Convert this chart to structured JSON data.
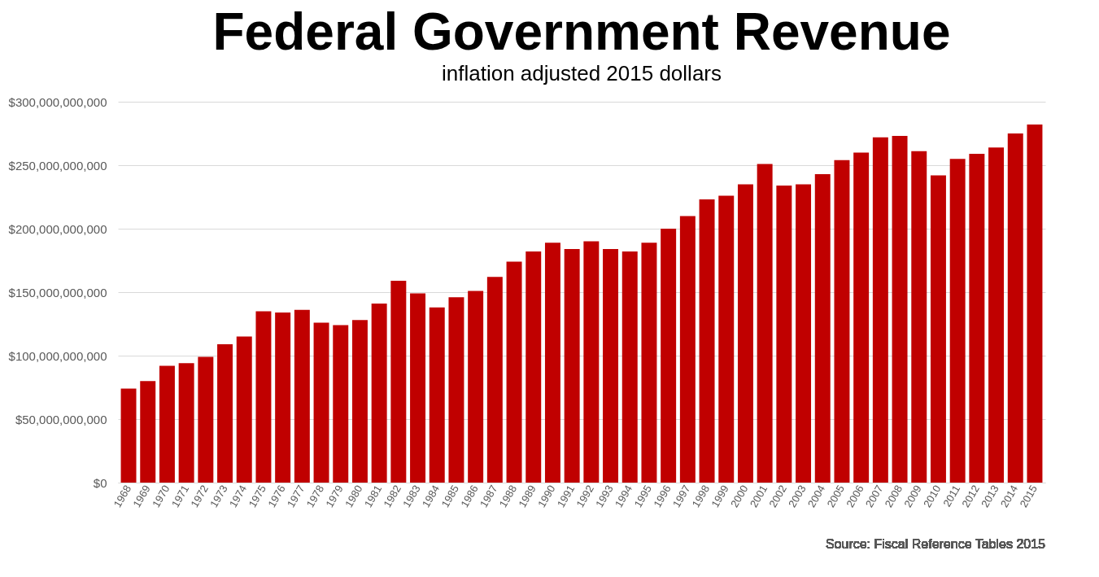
{
  "chart_data": {
    "type": "bar",
    "title": "Federal Government Revenue",
    "subtitle": "inflation adjusted 2015 dollars",
    "categories": [
      "1968",
      "1969",
      "1970",
      "1971",
      "1972",
      "1973",
      "1974",
      "1975",
      "1976",
      "1977",
      "1978",
      "1979",
      "1980",
      "1981",
      "1982",
      "1983",
      "1984",
      "1985",
      "1986",
      "1987",
      "1988",
      "1989",
      "1990",
      "1991",
      "1992",
      "1993",
      "1994",
      "1995",
      "1996",
      "1997",
      "1998",
      "1999",
      "2000",
      "2001",
      "2002",
      "2003",
      "2004",
      "2005",
      "2006",
      "2007",
      "2008",
      "2009",
      "2010",
      "2011",
      "2012",
      "2013",
      "2014",
      "2015"
    ],
    "values": [
      74000000000,
      80000000000,
      92000000000,
      94000000000,
      99000000000,
      109000000000,
      115000000000,
      135000000000,
      134000000000,
      136000000000,
      126000000000,
      124000000000,
      128000000000,
      141000000000,
      159000000000,
      149000000000,
      138000000000,
      146000000000,
      151000000000,
      162000000000,
      174000000000,
      182000000000,
      189000000000,
      184000000000,
      190000000000,
      184000000000,
      182000000000,
      189000000000,
      200000000000,
      210000000000,
      223000000000,
      226000000000,
      235000000000,
      251000000000,
      234000000000,
      235000000000,
      243000000000,
      254000000000,
      260000000000,
      272000000000,
      273000000000,
      261000000000,
      242000000000,
      255000000000,
      259000000000,
      264000000000,
      275000000000,
      282000000000
    ],
    "color": "#c00000",
    "ylim": [
      0,
      300000000000
    ],
    "yticks": [
      {
        "value": 0,
        "label": "$0"
      },
      {
        "value": 50000000000,
        "label": "$50,000,000,000"
      },
      {
        "value": 100000000000,
        "label": "$100,000,000,000"
      },
      {
        "value": 150000000000,
        "label": "$150,000,000,000"
      },
      {
        "value": 200000000000,
        "label": "$200,000,000,000"
      },
      {
        "value": 250000000000,
        "label": "$250,000,000,000"
      },
      {
        "value": 300000000000,
        "label": "$300,000,000,000"
      }
    ],
    "grid": "y",
    "annotations": [
      "Source: Fiscal Reference Tables 2015"
    ]
  }
}
